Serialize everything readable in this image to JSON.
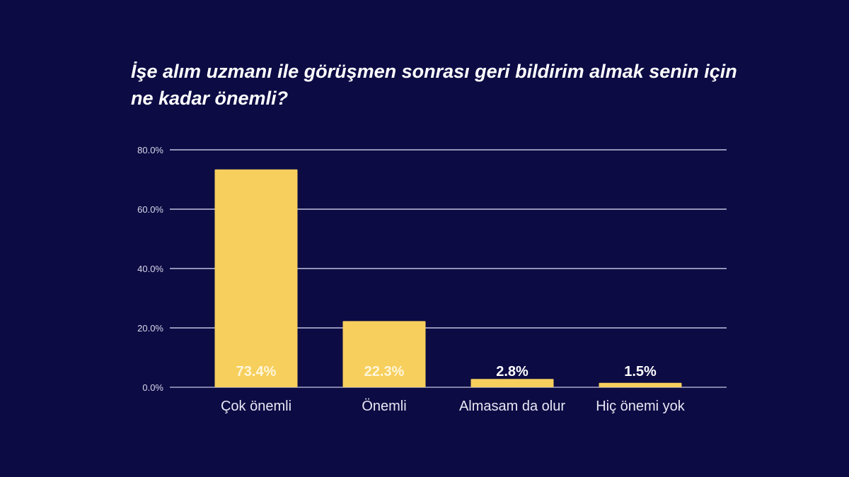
{
  "chart_data": {
    "type": "bar",
    "title": "İşe alım uzmanı ile görüşmen sonrası geri bildirim almak senin için ne kadar önemli?",
    "categories": [
      "Çok önemli",
      "Önemli",
      "Almasam da olur",
      "Hiç önemi yok"
    ],
    "values": [
      73.4,
      22.3,
      2.8,
      1.5
    ],
    "data_labels": [
      "73.4%",
      "22.3%",
      "2.8%",
      "1.5%"
    ],
    "ylim": [
      0,
      80
    ],
    "yticks": [
      0,
      20,
      40,
      60,
      80
    ],
    "ytick_labels": [
      "0.0%",
      "20.0%",
      "40.0%",
      "60.0%",
      "80.0%"
    ],
    "xlabel": "",
    "ylabel": "",
    "grid": true,
    "legend": "none"
  },
  "colors": {
    "background": "#0c0b44",
    "bar": "#f7cf5c",
    "gridline": "#a9a8c8",
    "tick_label": "#d9d8ea",
    "category_label": "#e8e7f3",
    "data_label_inside": "#fdf6dc",
    "data_label_outside": "#ffffff"
  }
}
